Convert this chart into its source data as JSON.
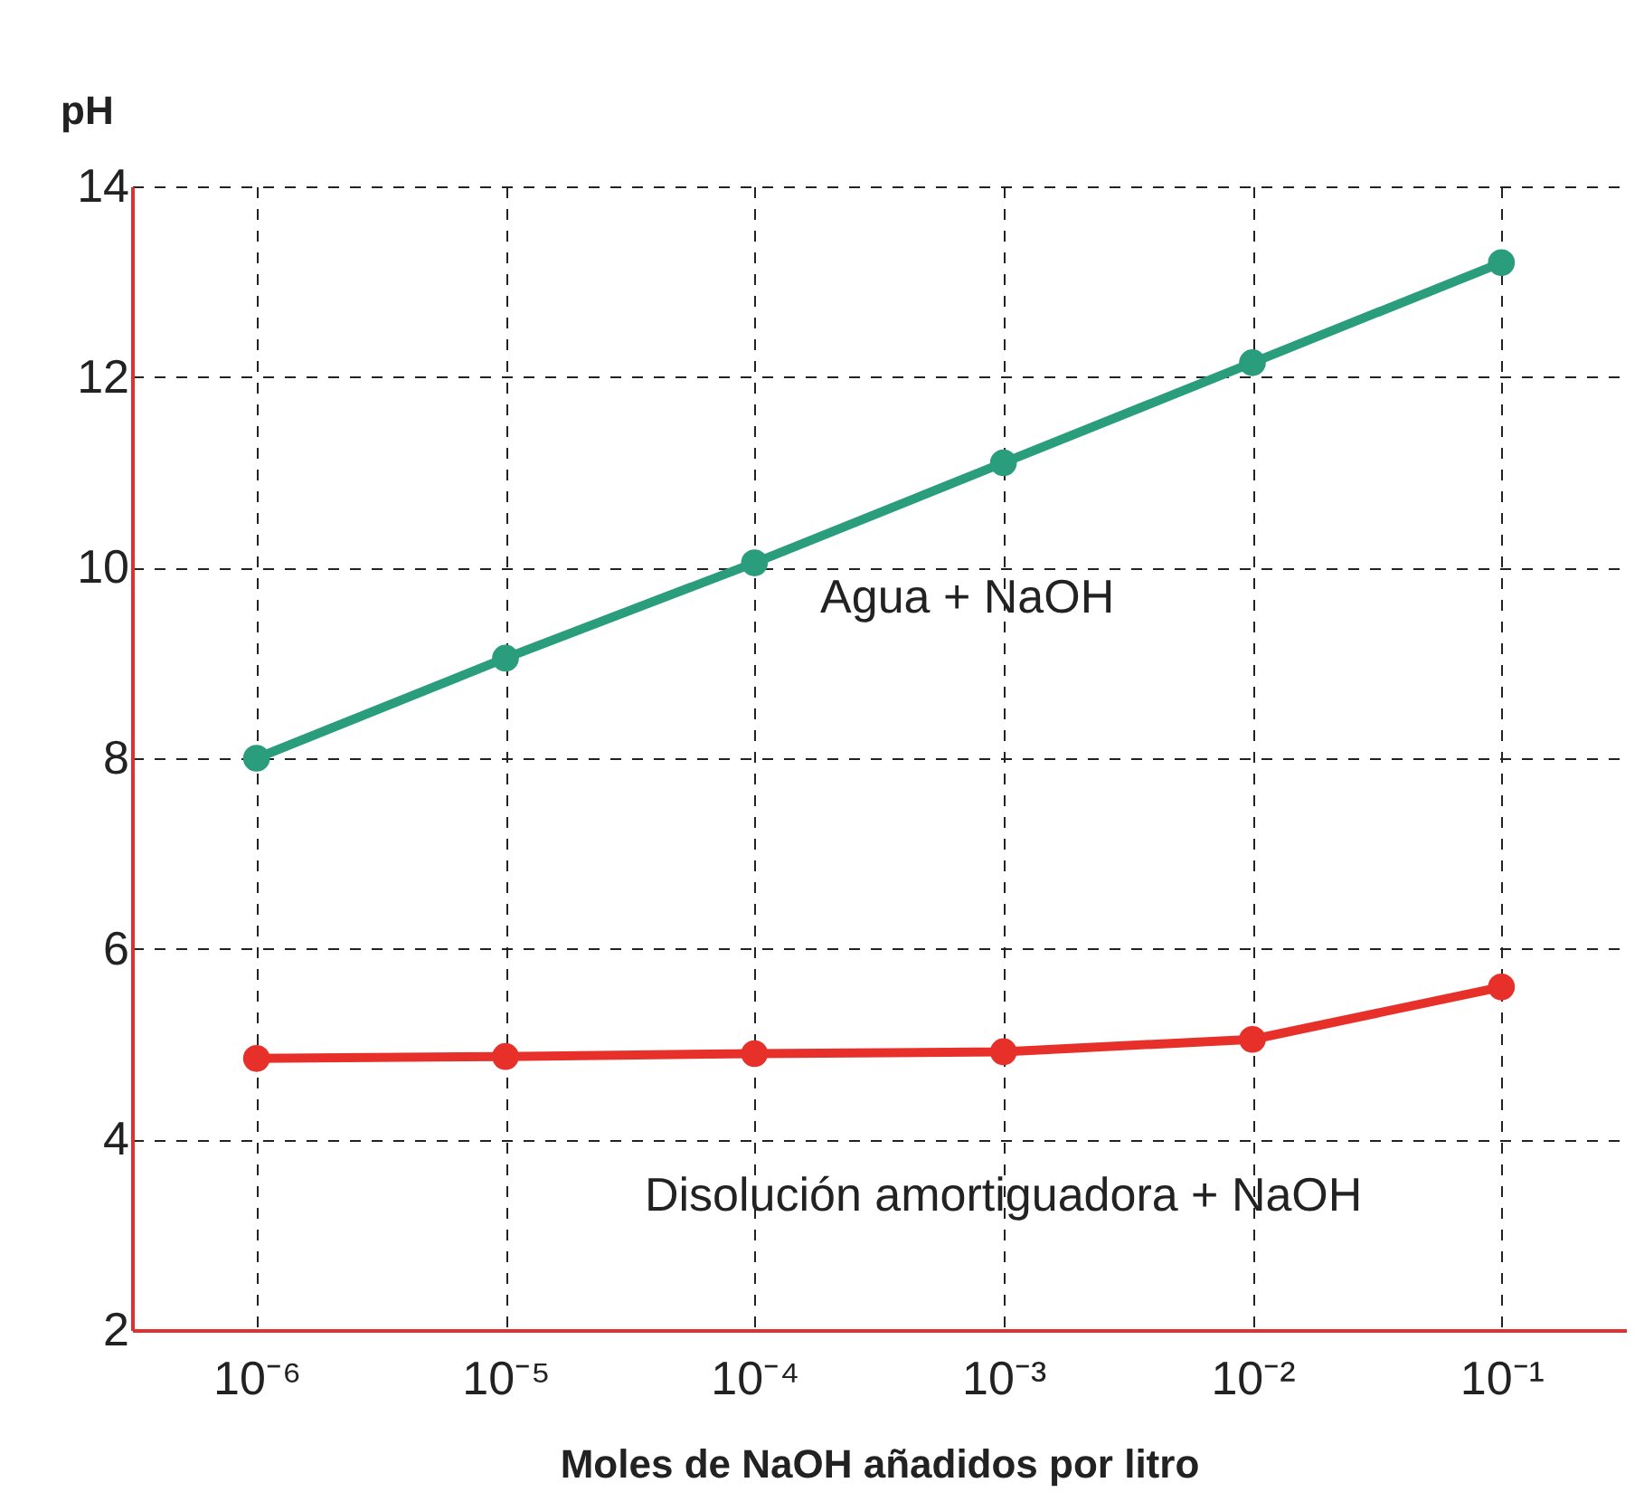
{
  "chart_data": {
    "type": "line",
    "xlabel": "Moles de NaOH añadidos por litro",
    "ylabel": "pH",
    "categories": [
      "10⁻⁶",
      "10⁻⁵",
      "10⁻⁴",
      "10⁻³",
      "10⁻²",
      "10⁻¹"
    ],
    "series": [
      {
        "name": "Agua + NaOH",
        "color": "#2a9d7c",
        "values": [
          8.0,
          9.05,
          10.05,
          11.1,
          12.15,
          13.2
        ]
      },
      {
        "name": "Disolución amortiguadora + NaOH",
        "color": "#e8302a",
        "values": [
          4.85,
          4.87,
          4.9,
          4.92,
          5.05,
          5.6
        ]
      }
    ],
    "ylim": [
      2,
      14
    ],
    "yticks": [
      2,
      4,
      6,
      8,
      10,
      12,
      14
    ],
    "grid": true,
    "marker": "circle",
    "line_style": "solid"
  }
}
